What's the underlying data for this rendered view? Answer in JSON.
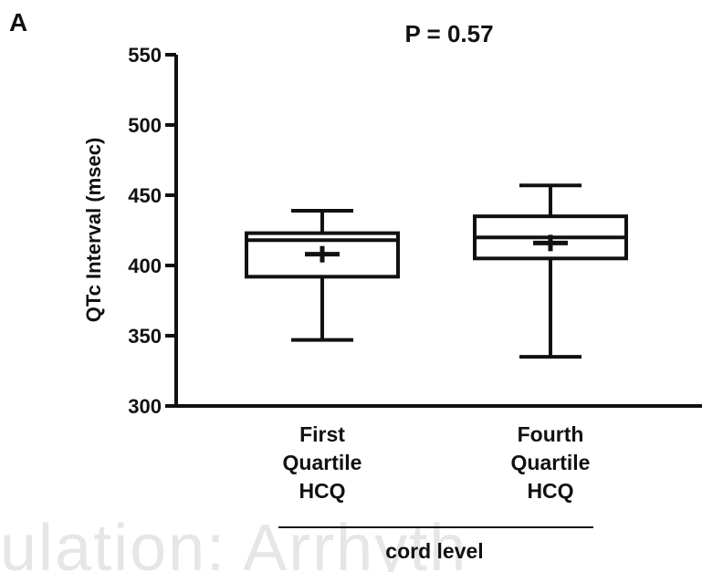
{
  "panel_label": "A",
  "watermark_text": "ulation: Arrhyth",
  "chart_data": {
    "type": "boxplot",
    "title": "P = 0.57",
    "xlabel": "cord level",
    "ylabel": "QTc Interval (msec)",
    "ylim": [
      300,
      550
    ],
    "yticks": [
      300,
      350,
      400,
      450,
      500,
      550
    ],
    "grid": false,
    "legend": "none",
    "categories": [
      [
        "First",
        "Quartile",
        "HCQ"
      ],
      [
        "Fourth",
        "Quartile",
        "HCQ"
      ]
    ],
    "boxes": [
      {
        "min": 347,
        "q1": 392,
        "median": 418,
        "q3": 423,
        "max": 439,
        "mean": 408
      },
      {
        "min": 335,
        "q1": 405,
        "median": 420,
        "q3": 435,
        "max": 457,
        "mean": 416
      }
    ],
    "colors": {
      "stroke": "#111111"
    }
  }
}
